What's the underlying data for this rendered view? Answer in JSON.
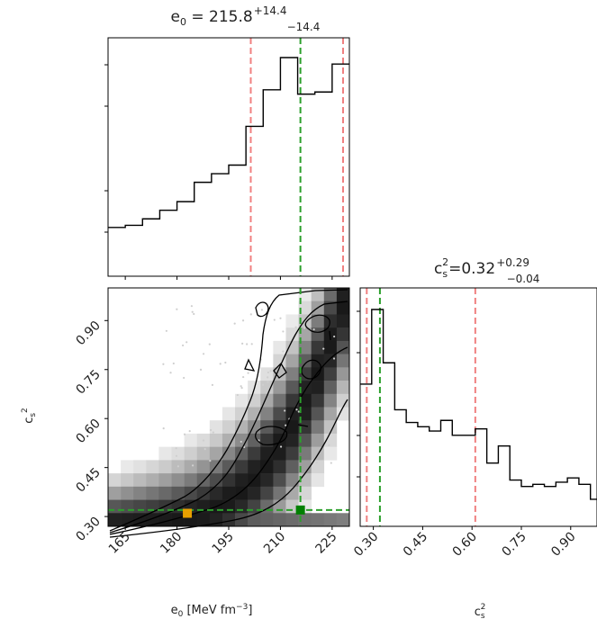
{
  "chart_data": [
    {
      "type": "line",
      "panel": "histogram-e0",
      "title": {
        "base": "e",
        "sub": "0",
        "eq": " = 215.8",
        "sup": "+14.4",
        "low": "−14.4"
      },
      "xlim": [
        160,
        230
      ],
      "xticks": [
        165,
        180,
        195,
        210,
        225
      ],
      "ylim": [
        0,
        1
      ],
      "bin_edges": [
        160,
        165,
        170,
        175,
        180,
        185,
        190,
        195,
        200,
        205,
        210,
        215,
        220,
        225,
        230
      ],
      "heights": [
        0.21,
        0.22,
        0.25,
        0.29,
        0.33,
        0.42,
        0.46,
        0.5,
        0.68,
        0.85,
        1.0,
        0.83,
        0.84,
        0.97
      ],
      "quantiles": [
        201.4,
        215.8,
        230.2
      ],
      "quantile_colors": [
        "#f08080",
        "#2ca02c",
        "#f08080"
      ]
    },
    {
      "type": "heatmap",
      "panel": "joint-e0-cs2",
      "xlim": [
        160,
        230
      ],
      "ylim": [
        0.27,
        1.0
      ],
      "xticks": [
        165,
        180,
        195,
        210,
        225
      ],
      "yticks": [
        "0.30",
        "0.45",
        "0.60",
        "0.75",
        "0.90"
      ],
      "xlabel_base": "e",
      "xlabel_sub": "0",
      "xlabel_unit": " [MeV fm",
      "xlabel_sup": "−3",
      "xlabel_end": "]",
      "ylabel_base": "c",
      "ylabel_sub": "s",
      "ylabel_sup": "2",
      "truth": {
        "e0": 215.8,
        "cs2": 0.32
      },
      "markers": [
        {
          "e0": 215.8,
          "cs2": 0.32,
          "color": "#008000"
        },
        {
          "e0": 183,
          "cs2": 0.31,
          "color": "#e8a000"
        }
      ]
    },
    {
      "type": "line",
      "panel": "histogram-cs2",
      "title": {
        "base": "c",
        "sub": "s",
        "sup2": "2",
        "eq": "=0.32",
        "sup": "+0.29",
        "low": "−0.04"
      },
      "xlim": [
        0.26,
        0.98
      ],
      "xticks": [
        "0.30",
        "0.45",
        "0.60",
        "0.75",
        "0.90"
      ],
      "xlabel_base": "c",
      "xlabel_sub": "s",
      "xlabel_sup": "2",
      "ylim": [
        0,
        1
      ],
      "bin_edges": [
        0.26,
        0.295,
        0.33,
        0.365,
        0.4,
        0.435,
        0.47,
        0.505,
        0.54,
        0.575,
        0.61,
        0.645,
        0.68,
        0.715,
        0.75,
        0.785,
        0.82,
        0.855,
        0.89,
        0.925,
        0.96,
        0.98
      ],
      "heights": [
        0.65,
        1.0,
        0.75,
        0.53,
        0.47,
        0.45,
        0.43,
        0.48,
        0.41,
        0.41,
        0.44,
        0.28,
        0.36,
        0.2,
        0.17,
        0.18,
        0.17,
        0.19,
        0.21,
        0.18,
        0.11
      ],
      "quantiles": [
        0.28,
        0.32,
        0.61
      ],
      "quantile_colors": [
        "#f08080",
        "#2ca02c",
        "#f08080"
      ]
    }
  ]
}
